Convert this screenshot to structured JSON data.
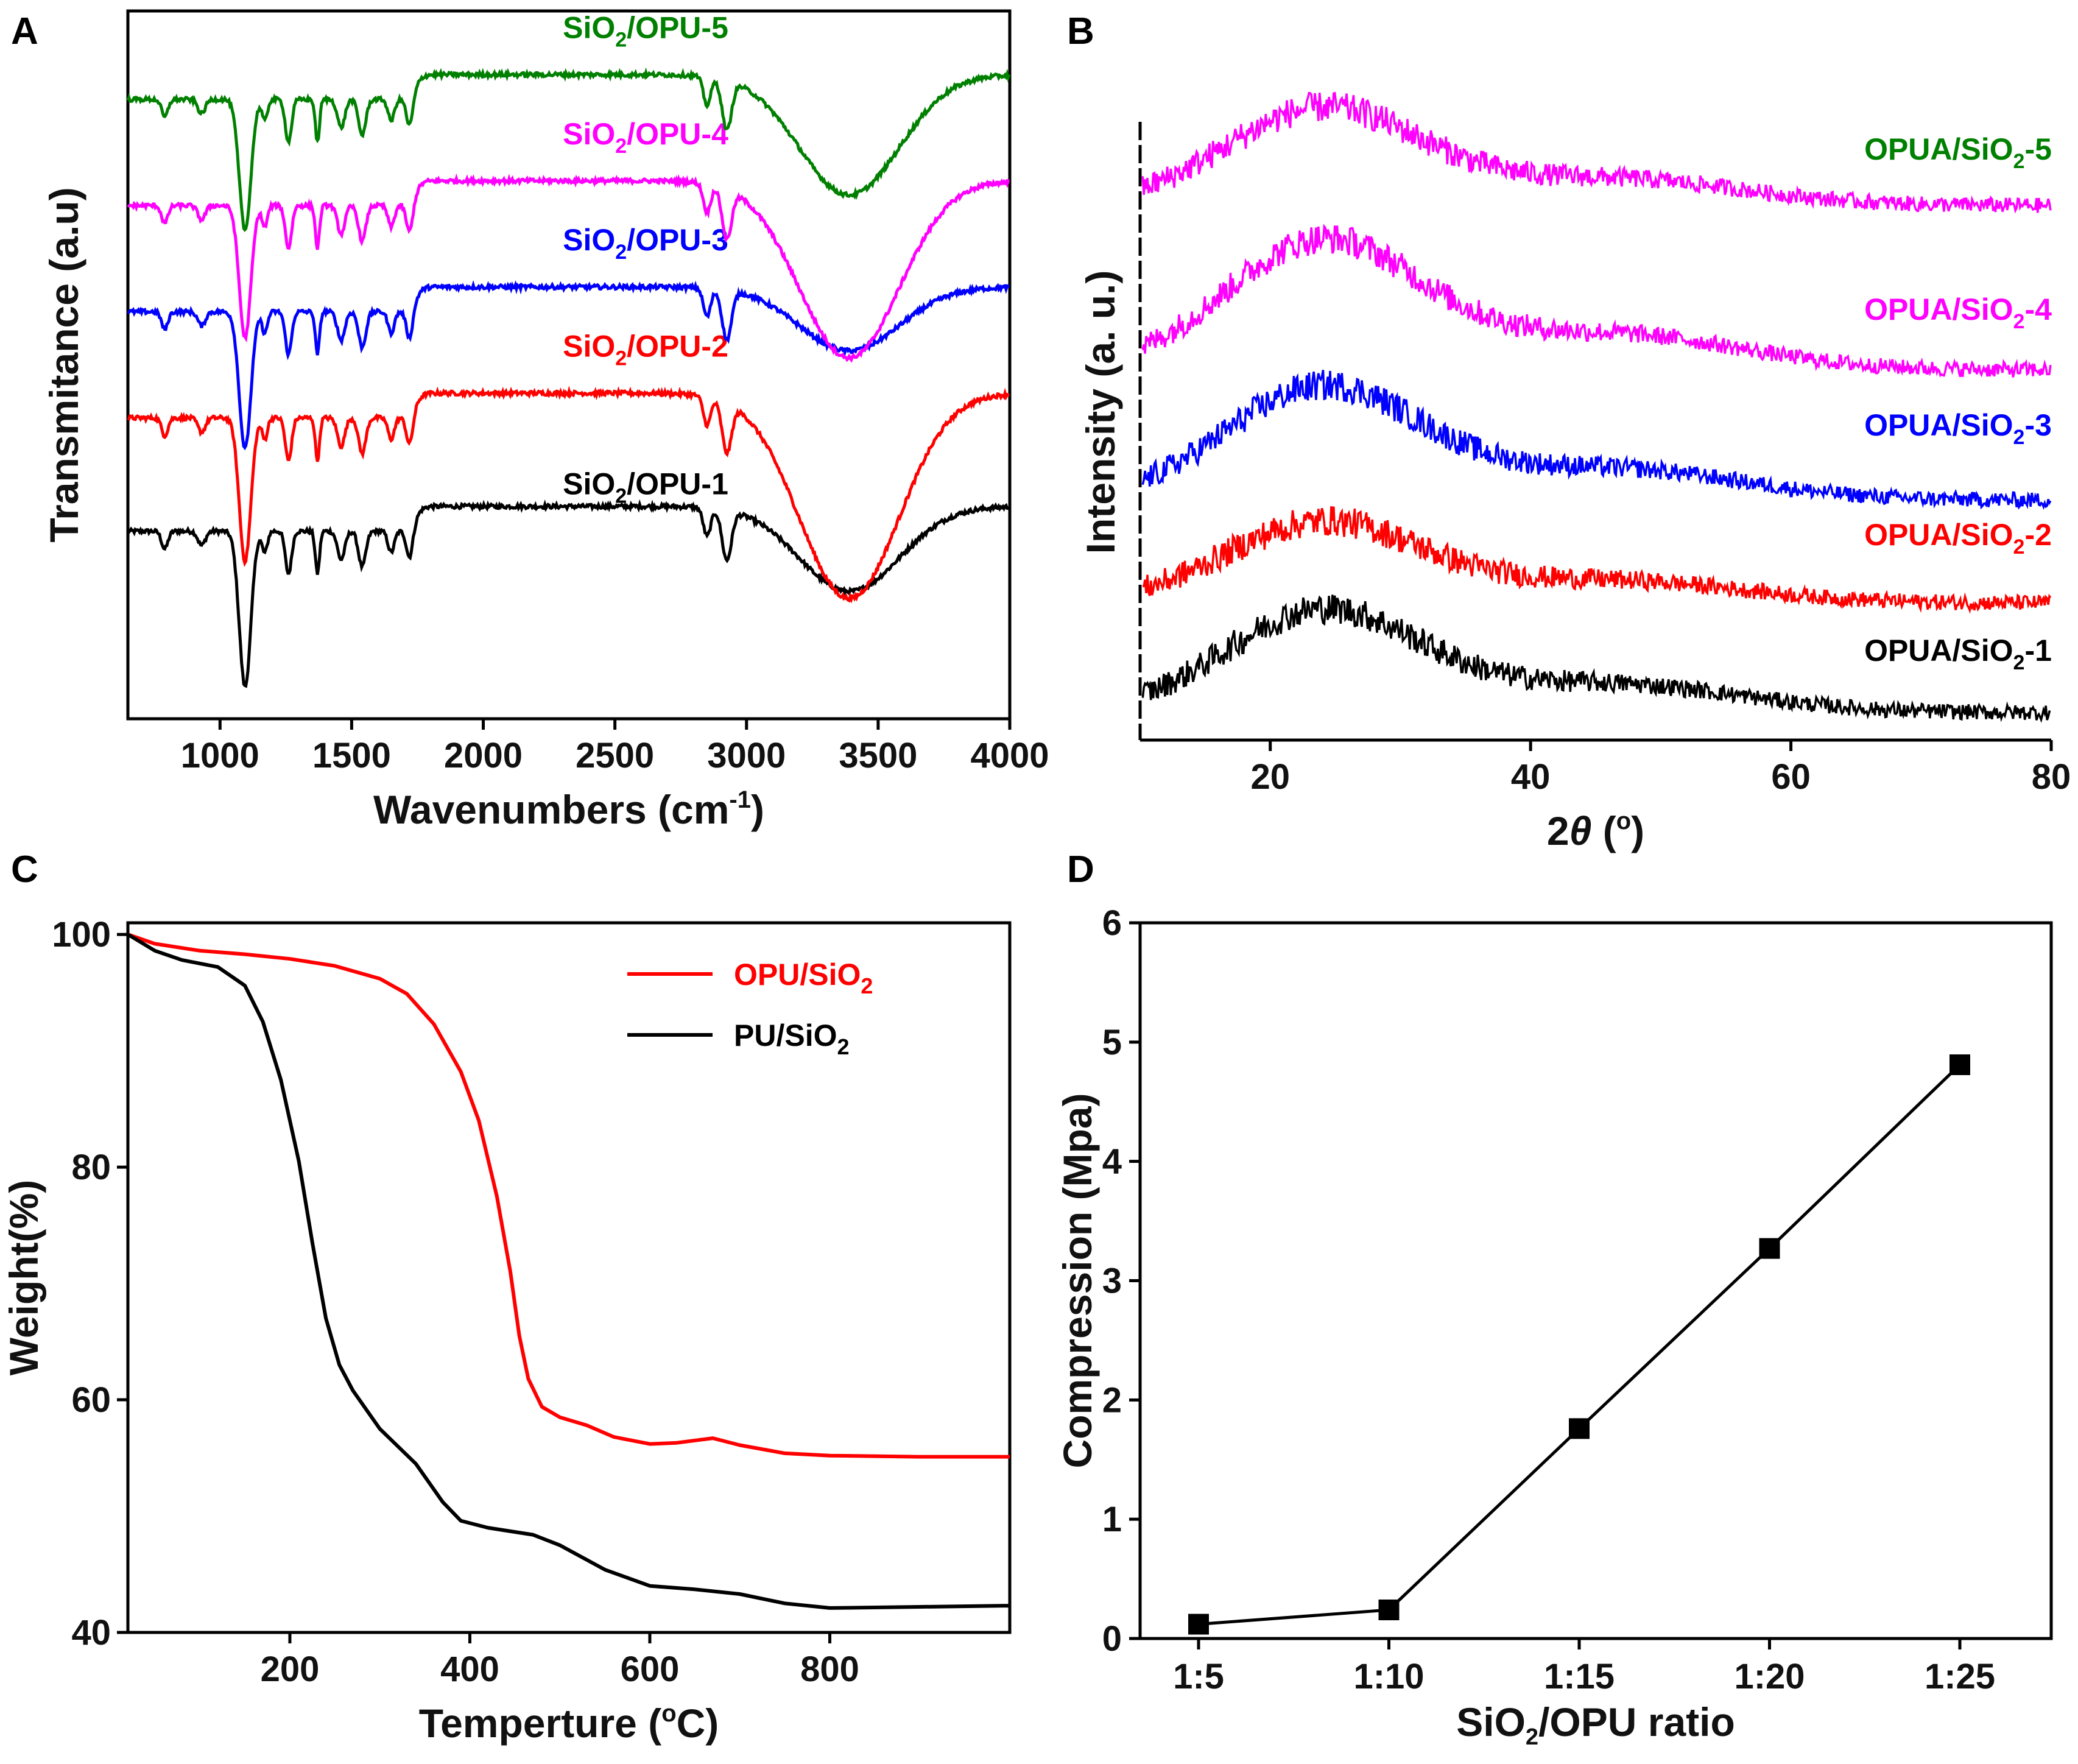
{
  "chart_data": [
    {
      "id": "A",
      "type": "line",
      "panel_label": "A",
      "title": "",
      "xlabel": "Wavenumbers (cm-1)",
      "xlabel_main": "Wavenumbers (cm",
      "xlabel_sup": "-1",
      "xlabel_close": ")",
      "ylabel": "Transmitance (a.u)",
      "xlim": [
        650,
        4000
      ],
      "xticks": [
        1000,
        1500,
        2000,
        2500,
        3000,
        3500,
        4000
      ],
      "y_units": "arbitrary (curves offset vertically)",
      "series": [
        {
          "name": "SiO2/OPU-1",
          "label_parts": [
            "SiO",
            "2",
            "/OPU-1"
          ],
          "color": "#000000",
          "baseline": 0.3,
          "dip_scale": 1.0,
          "broad_depth": 0.12
        },
        {
          "name": "SiO2/OPU-2",
          "label_parts": [
            "SiO",
            "2",
            "/OPU-2"
          ],
          "color": "#ff0000",
          "baseline": 0.46,
          "dip_scale": 0.92,
          "broad_depth": 0.29
        },
        {
          "name": "SiO2/OPU-3",
          "label_parts": [
            "SiO",
            "2",
            "/OPU-3"
          ],
          "color": "#0000ff",
          "baseline": 0.61,
          "dip_scale": 0.88,
          "broad_depth": 0.09
        },
        {
          "name": "SiO2/OPU-4",
          "label_parts": [
            "SiO",
            "2",
            "/OPU-4"
          ],
          "color": "#ff00ff",
          "baseline": 0.76,
          "dip_scale": 0.85,
          "broad_depth": 0.25
        },
        {
          "name": "SiO2/OPU-5",
          "label_parts": [
            "SiO",
            "2",
            "/OPU-5"
          ],
          "color": "#008000",
          "baseline": 0.91,
          "dip_scale": 0.84,
          "broad_depth": 0.17
        }
      ],
      "peaks_cm1": [
        790,
        930,
        1095,
        1170,
        1260,
        1370,
        1460,
        1540,
        1650,
        1720,
        2850,
        2925,
        3390
      ],
      "grid": false,
      "legend": "labels above each curve"
    },
    {
      "id": "B",
      "type": "line",
      "panel_label": "B",
      "title": "",
      "xlabel": "2θ (°)",
      "xlabel_main": "2",
      "xlabel_theta": "θ",
      "xlabel_tail": " (",
      "xlabel_sup": "o",
      "xlabel_close": ")",
      "ylabel": "Intensity (a. u.)",
      "xlim": [
        10,
        80
      ],
      "xticks": [
        20,
        40,
        60,
        80
      ],
      "y_units": "arbitrary (curves offset vertically)",
      "hump_center_deg": 24,
      "series": [
        {
          "name": "OPUA/SiO2-1",
          "label_parts": [
            "OPUA/SiO",
            "2",
            "-1"
          ],
          "color": "#000000",
          "baseline": 0.04,
          "hump": 0.19
        },
        {
          "name": "OPUA/SiO2-2",
          "label_parts": [
            "OPUA/SiO",
            "2",
            "-2"
          ],
          "color": "#ff0000",
          "baseline": 0.2,
          "hump": 0.15
        },
        {
          "name": "OPUA/SiO2-3",
          "label_parts": [
            "OPUA/SiO",
            "2",
            "-3"
          ],
          "color": "#0000ff",
          "baseline": 0.35,
          "hump": 0.21
        },
        {
          "name": "OPUA/SiO2-4",
          "label_parts": [
            "OPUA/SiO",
            "2",
            "-4"
          ],
          "color": "#ff00ff",
          "baseline": 0.54,
          "hump": 0.24
        },
        {
          "name": "OPUA/SiO2-5",
          "label_parts": [
            "OPUA/SiO",
            "2",
            "-5"
          ],
          "color": "#ff00ff",
          "baseline": 0.78,
          "hump": 0.18
        }
      ],
      "label_colors": [
        "#000000",
        "#ff0000",
        "#0000ff",
        "#ff00ff",
        "#008000"
      ],
      "grid": false,
      "legend": "labels at right of each curve"
    },
    {
      "id": "C",
      "type": "line",
      "panel_label": "C",
      "title": "",
      "xlabel": "Temperture (°C)",
      "xlabel_main": "Temperture (",
      "xlabel_sup": "o",
      "xlabel_close": "C)",
      "ylabel": "Weight(%)",
      "xlim": [
        20,
        1000
      ],
      "ylim": [
        40,
        101
      ],
      "xticks": [
        200,
        400,
        600,
        800
      ],
      "yticks": [
        40,
        60,
        80,
        100
      ],
      "series": [
        {
          "name": "OPU/SiO2",
          "label_parts": [
            "OPU/SiO",
            "2"
          ],
          "color": "#ff0000",
          "x": [
            20,
            50,
            100,
            150,
            200,
            250,
            300,
            330,
            360,
            390,
            410,
            430,
            445,
            455,
            465,
            480,
            500,
            530,
            560,
            600,
            630,
            670,
            700,
            750,
            800,
            900,
            1000
          ],
          "y": [
            100,
            99.2,
            98.6,
            98.3,
            97.9,
            97.3,
            96.2,
            94.9,
            92.3,
            88.2,
            84,
            77.5,
            71,
            65.5,
            61.8,
            59.4,
            58.5,
            57.8,
            56.8,
            56.2,
            56.3,
            56.7,
            56.1,
            55.4,
            55.2,
            55.1,
            55.1
          ]
        },
        {
          "name": "PU/SiO2",
          "label_parts": [
            "PU/SiO",
            "2"
          ],
          "color": "#000000",
          "x": [
            20,
            50,
            80,
            120,
            150,
            170,
            190,
            210,
            225,
            240,
            255,
            270,
            300,
            340,
            370,
            390,
            420,
            470,
            500,
            550,
            600,
            650,
            700,
            750,
            800,
            900,
            1000
          ],
          "y": [
            100,
            98.6,
            97.8,
            97.2,
            95.6,
            92.5,
            87.5,
            80.5,
            73.5,
            67,
            63,
            60.8,
            57.5,
            54.5,
            51.2,
            49.6,
            49,
            48.4,
            47.5,
            45.4,
            44,
            43.7,
            43.3,
            42.5,
            42.1,
            42.2,
            42.3
          ]
        }
      ],
      "grid": false,
      "legend": "top-right"
    },
    {
      "id": "D",
      "type": "line",
      "panel_label": "D",
      "title": "",
      "xlabel": "SiO2/OPU ratio",
      "xlabel_main": "SiO",
      "xlabel_sub": "2",
      "xlabel_close": "/OPU ratio",
      "ylabel": "Compression (Mpa)",
      "categories": [
        "1:5",
        "1:10",
        "1:15",
        "1:20",
        "1:25"
      ],
      "values": [
        0.12,
        0.24,
        1.76,
        3.27,
        4.81
      ],
      "ylim": [
        0,
        6
      ],
      "yticks": [
        0,
        1,
        2,
        3,
        4,
        5,
        6
      ],
      "marker": "square",
      "color": "#000000",
      "grid": false,
      "legend": "none"
    }
  ]
}
